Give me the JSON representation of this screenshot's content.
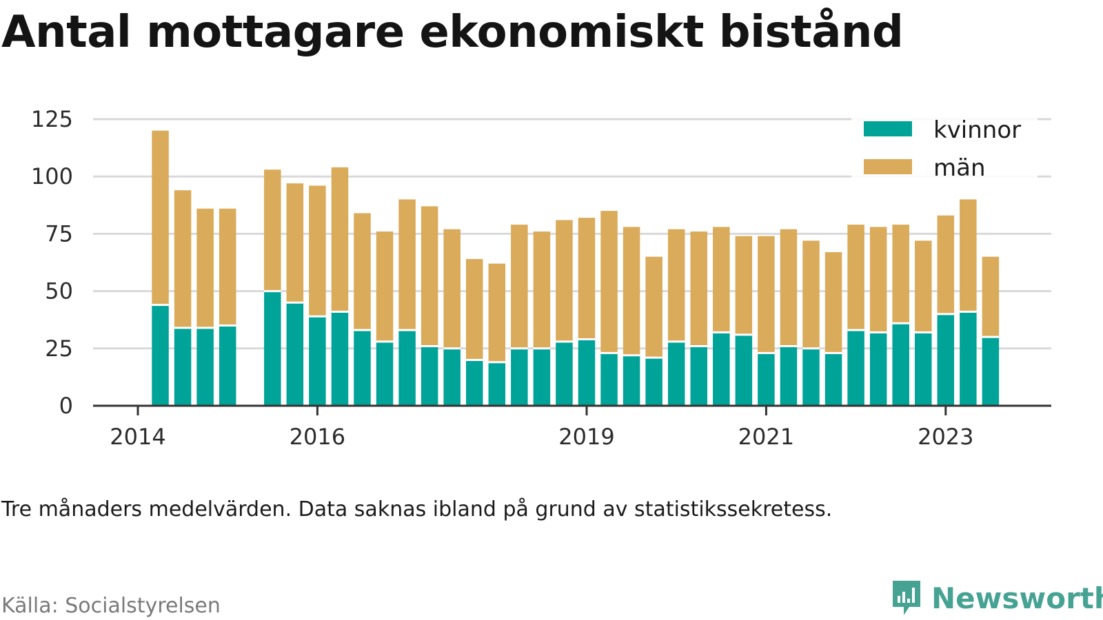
{
  "page": {
    "title": "Antal mottagare ekonomiskt bistånd",
    "note": "Tre månaders medelvärden. Data saknas ibland på grund av statistikssekretess.",
    "source": "Källa: Socialstyrelsen",
    "brand": {
      "name": "Newsworthy",
      "icon": "newsworthy-logo-icon",
      "color": "#46a394"
    }
  },
  "colors": {
    "kvinnor": "#00a398",
    "man": "#d9ab5a",
    "grid": "#d9d9d9",
    "axis": "#333333"
  },
  "chart_data": {
    "type": "bar",
    "stacked": true,
    "title": "Antal mottagare ekonomiskt bistånd",
    "xlabel": "",
    "ylabel": "",
    "ylim": [
      0,
      125
    ],
    "yticks": [
      0,
      25,
      50,
      75,
      100,
      125
    ],
    "xticks": [
      {
        "label": "2014",
        "x": 2014.0
      },
      {
        "label": "2016",
        "x": 2016.0
      },
      {
        "label": "2019",
        "x": 2019.0
      },
      {
        "label": "2021",
        "x": 2021.0
      },
      {
        "label": "2023",
        "x": 2023.0
      }
    ],
    "xlim": [
      2013.5,
      2024.25
    ],
    "grid": true,
    "legend_position": "top-right",
    "x": [
      2014.25,
      2014.5,
      2014.75,
      2015.0,
      2015.5,
      2015.75,
      2016.0,
      2016.25,
      2016.5,
      2016.75,
      2017.0,
      2017.25,
      2017.5,
      2017.75,
      2018.0,
      2018.25,
      2018.5,
      2018.75,
      2019.0,
      2019.25,
      2019.5,
      2019.75,
      2020.0,
      2020.25,
      2020.5,
      2020.75,
      2021.0,
      2021.25,
      2021.5,
      2021.75,
      2022.0,
      2022.25,
      2022.5,
      2022.75,
      2023.0,
      2023.25,
      2023.5
    ],
    "series": [
      {
        "name": "kvinnor",
        "color": "#00a398",
        "values": [
          44,
          34,
          34,
          35,
          50,
          45,
          39,
          41,
          33,
          28,
          33,
          26,
          25,
          20,
          19,
          25,
          25,
          28,
          29,
          23,
          22,
          21,
          28,
          26,
          32,
          31,
          23,
          26,
          25,
          23,
          33,
          32,
          36,
          32,
          40,
          41,
          30
        ]
      },
      {
        "name": "män",
        "color": "#d9ab5a",
        "values": [
          76,
          60,
          52,
          51,
          53,
          52,
          57,
          63,
          51,
          48,
          57,
          61,
          52,
          44,
          43,
          54,
          51,
          53,
          53,
          62,
          56,
          44,
          49,
          50,
          46,
          43,
          51,
          51,
          47,
          44,
          46,
          46,
          43,
          40,
          43,
          49,
          35
        ]
      }
    ]
  }
}
